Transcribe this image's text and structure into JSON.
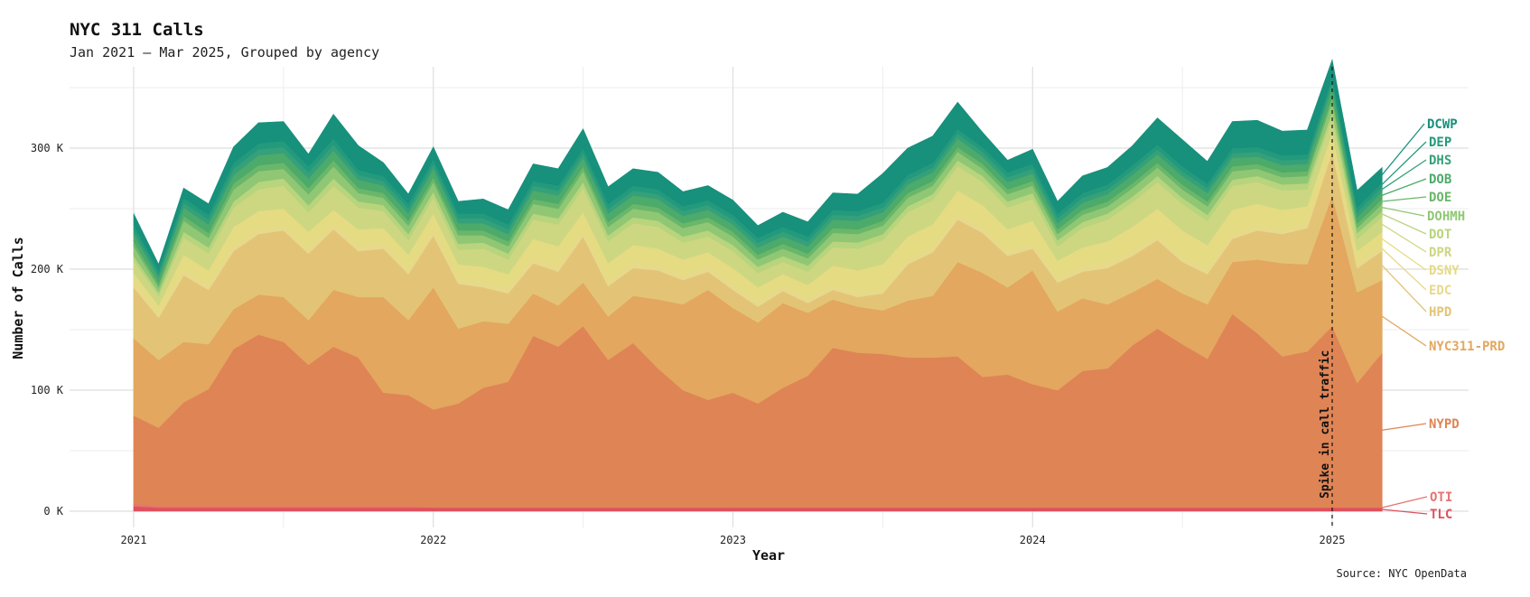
{
  "chart_data": {
    "type": "area",
    "title": "NYC 311 Calls",
    "subtitle": "Jan 2021 – Mar 2025, Grouped by agency",
    "xlabel": "Year",
    "ylabel": "Number of Calls",
    "source": "Source: NYC OpenData",
    "x_ticks": [
      "2021",
      "2022",
      "2023",
      "2024",
      "2025"
    ],
    "y_ticks": [
      {
        "value": 0,
        "label": "0 K"
      },
      {
        "value": 100000,
        "label": "100 K"
      },
      {
        "value": 200000,
        "label": "200 K"
      },
      {
        "value": 300000,
        "label": "300 K"
      }
    ],
    "ylim": [
      -12000,
      365000
    ],
    "x_start": "2021-01",
    "months": 51,
    "annotation": {
      "month_index": 48,
      "label": "Spike in call traffic"
    },
    "series": [
      {
        "name": "TLC",
        "color": "#e0505e",
        "values": [
          4,
          3,
          3,
          3,
          3,
          3,
          3,
          3,
          3,
          3,
          3,
          3,
          3,
          3,
          3,
          3,
          3,
          3,
          3,
          3,
          3,
          3,
          3,
          3,
          3,
          3,
          3,
          3,
          3,
          3,
          3,
          3,
          3,
          3,
          3,
          3,
          3,
          3,
          3,
          3,
          3,
          3,
          3,
          3,
          3,
          3,
          3,
          3,
          3,
          3,
          3
        ]
      },
      {
        "name": "OTI",
        "color": "#e57373",
        "values": [
          2,
          1,
          1,
          1,
          1,
          1,
          1,
          1,
          1,
          1,
          1,
          1,
          0,
          0,
          0,
          0,
          0,
          0,
          0,
          0,
          0,
          0,
          0,
          0,
          0,
          0,
          0,
          0,
          0,
          0,
          0,
          0,
          0,
          0,
          0,
          0,
          0,
          0,
          0,
          0,
          0,
          0,
          0,
          0,
          0,
          0,
          0,
          0,
          0,
          0,
          0
        ]
      },
      {
        "name": "NYPD",
        "color": "#df8455",
        "values": [
          73,
          65,
          86,
          97,
          130,
          142,
          136,
          117,
          132,
          123,
          94,
          92,
          81,
          86,
          99,
          104,
          142,
          133,
          150,
          122,
          136,
          115,
          97,
          89,
          95,
          86,
          99,
          109,
          132,
          128,
          127,
          124,
          124,
          125,
          108,
          110,
          102,
          97,
          113,
          115,
          134,
          148,
          135,
          123,
          160,
          144,
          125,
          129,
          150,
          103,
          128
        ]
      },
      {
        "name": "NYC311-PRD",
        "color": "#e3a75f",
        "values": [
          64,
          56,
          50,
          37,
          33,
          33,
          37,
          37,
          47,
          50,
          79,
          62,
          101,
          62,
          55,
          48,
          35,
          34,
          36,
          36,
          39,
          57,
          71,
          91,
          70,
          67,
          70,
          52,
          40,
          38,
          36,
          47,
          51,
          78,
          86,
          72,
          94,
          65,
          60,
          53,
          44,
          41,
          42,
          45,
          43,
          61,
          77,
          72,
          108,
          75,
          60
        ]
      },
      {
        "name": "HPD",
        "color": "#e3c477",
        "values": [
          42,
          35,
          55,
          45,
          48,
          50,
          55,
          55,
          50,
          38,
          40,
          38,
          43,
          37,
          28,
          25,
          25,
          28,
          38,
          25,
          23,
          24,
          20,
          15,
          15,
          13,
          10,
          8,
          8,
          8,
          14,
          30,
          36,
          35,
          33,
          26,
          18,
          24,
          22,
          30,
          30,
          32,
          26,
          25,
          19,
          24,
          24,
          30,
          36,
          20,
          24
        ]
      },
      {
        "name": "EDC",
        "color": "#e7d98b",
        "values": [
          4,
          4,
          4,
          4,
          4,
          4,
          4,
          4,
          4,
          4,
          4,
          4,
          4,
          4,
          4,
          4,
          4,
          4,
          4,
          4,
          4,
          4,
          4,
          4,
          4,
          4,
          4,
          4,
          4,
          4,
          4,
          4,
          4,
          4,
          4,
          4,
          4,
          4,
          4,
          4,
          4,
          4,
          4,
          4,
          4,
          4,
          4,
          4,
          4,
          4,
          4
        ]
      },
      {
        "name": "DSNY",
        "color": "#e5db82",
        "values": [
          8,
          6,
          13,
          12,
          16,
          15,
          14,
          14,
          12,
          14,
          13,
          12,
          14,
          12,
          13,
          12,
          16,
          17,
          16,
          15,
          15,
          14,
          13,
          12,
          14,
          12,
          10,
          11,
          16,
          18,
          20,
          19,
          19,
          20,
          19,
          18,
          19,
          14,
          16,
          18,
          20,
          22,
          22,
          20,
          20,
          18,
          16,
          14,
          12,
          10,
          12
        ]
      },
      {
        "name": "DPR",
        "color": "#cdd782",
        "values": [
          10,
          8,
          14,
          14,
          16,
          18,
          19,
          16,
          20,
          18,
          14,
          12,
          13,
          12,
          15,
          12,
          16,
          18,
          20,
          18,
          18,
          18,
          14,
          13,
          14,
          12,
          10,
          11,
          15,
          18,
          20,
          20,
          20,
          20,
          19,
          18,
          18,
          12,
          16,
          18,
          20,
          22,
          22,
          20,
          20,
          18,
          16,
          14,
          12,
          10,
          12
        ]
      },
      {
        "name": "DOT",
        "color": "#b8d47c",
        "values": [
          4,
          3,
          5,
          5,
          5,
          6,
          6,
          6,
          6,
          5,
          5,
          5,
          5,
          5,
          5,
          5,
          5,
          5,
          5,
          5,
          5,
          5,
          5,
          5,
          5,
          5,
          5,
          5,
          5,
          5,
          5,
          5,
          5,
          5,
          5,
          5,
          5,
          5,
          5,
          5,
          5,
          5,
          5,
          5,
          5,
          5,
          5,
          5,
          5,
          5,
          5
        ]
      },
      {
        "name": "DOHMH",
        "color": "#8fc774",
        "values": [
          8,
          4,
          9,
          8,
          10,
          9,
          8,
          9,
          10,
          7,
          6,
          7,
          8,
          7,
          6,
          6,
          8,
          8,
          9,
          7,
          7,
          7,
          7,
          7,
          7,
          6,
          6,
          6,
          7,
          7,
          7,
          7,
          7,
          7,
          6,
          6,
          6,
          5,
          6,
          6,
          7,
          7,
          7,
          7,
          7,
          6,
          6,
          6,
          9,
          4,
          6
        ]
      },
      {
        "name": "DOE",
        "color": "#6ab66a",
        "values": [
          4,
          3,
          4,
          4,
          5,
          5,
          5,
          5,
          5,
          4,
          4,
          4,
          4,
          4,
          4,
          4,
          4,
          4,
          4,
          4,
          4,
          4,
          4,
          4,
          4,
          4,
          4,
          4,
          4,
          4,
          4,
          4,
          4,
          4,
          4,
          4,
          4,
          4,
          4,
          4,
          4,
          4,
          4,
          4,
          4,
          4,
          4,
          4,
          4,
          4,
          4
        ]
      },
      {
        "name": "DOB",
        "color": "#4caa6a",
        "values": [
          6,
          5,
          7,
          7,
          7,
          8,
          8,
          8,
          8,
          7,
          6,
          6,
          7,
          6,
          6,
          6,
          7,
          7,
          7,
          7,
          7,
          7,
          6,
          6,
          6,
          6,
          6,
          6,
          7,
          7,
          7,
          7,
          7,
          7,
          6,
          6,
          6,
          5,
          6,
          6,
          7,
          7,
          7,
          7,
          7,
          6,
          6,
          6,
          8,
          5,
          6
        ]
      },
      {
        "name": "DHS",
        "color": "#35a07a",
        "values": [
          4,
          3,
          4,
          4,
          5,
          5,
          5,
          5,
          5,
          4,
          4,
          4,
          4,
          4,
          4,
          4,
          4,
          4,
          4,
          4,
          4,
          4,
          4,
          4,
          4,
          4,
          4,
          4,
          4,
          4,
          4,
          4,
          4,
          4,
          4,
          4,
          4,
          4,
          4,
          4,
          4,
          4,
          4,
          4,
          4,
          4,
          4,
          4,
          4,
          4,
          4
        ]
      },
      {
        "name": "DEP",
        "color": "#239a7c",
        "values": [
          4,
          3,
          4,
          4,
          5,
          5,
          5,
          5,
          5,
          4,
          4,
          4,
          4,
          4,
          4,
          4,
          4,
          4,
          4,
          4,
          4,
          4,
          4,
          4,
          4,
          4,
          4,
          4,
          4,
          4,
          4,
          4,
          4,
          4,
          4,
          4,
          4,
          4,
          4,
          4,
          4,
          4,
          4,
          4,
          4,
          4,
          4,
          4,
          4,
          4,
          4
        ]
      },
      {
        "name": "DCWP",
        "color": "#17907c",
        "values": [
          9,
          5,
          8,
          9,
          13,
          17,
          16,
          10,
          20,
          20,
          11,
          8,
          10,
          10,
          12,
          12,
          14,
          14,
          16,
          14,
          14,
          14,
          12,
          12,
          12,
          10,
          12,
          12,
          14,
          14,
          24,
          22,
          22,
          22,
          12,
          10,
          12,
          10,
          14,
          14,
          16,
          22,
          22,
          18,
          22,
          22,
          20,
          20,
          14,
          14,
          12
        ]
      }
    ]
  }
}
